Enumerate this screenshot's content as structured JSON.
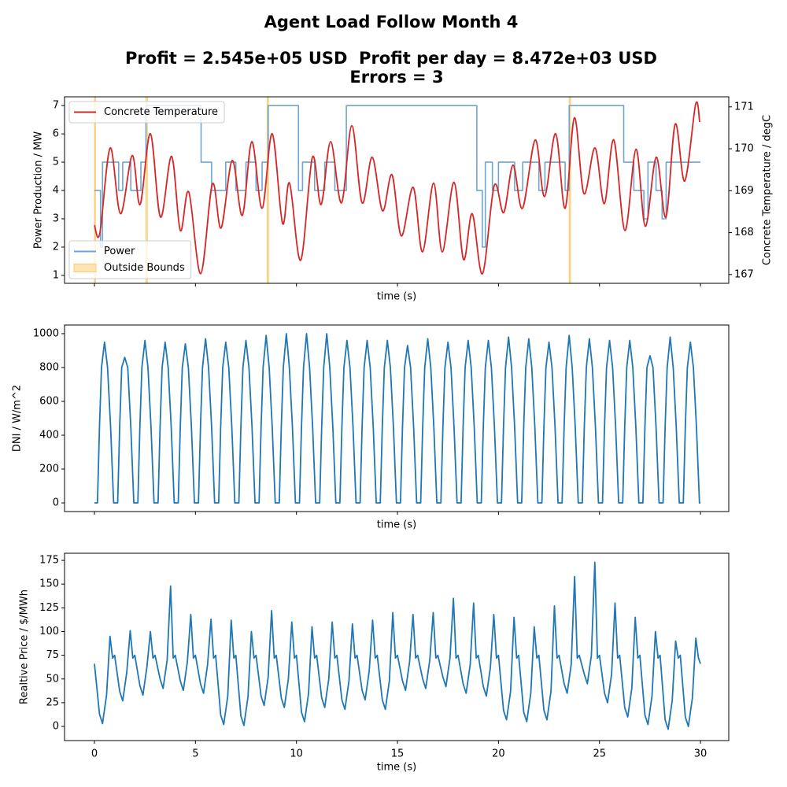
{
  "figure": {
    "title": [
      "Agent Load Follow Month 4",
      "Profit = 2.545e+05 USD  Profit per day = 8.472e+03 USD",
      "Errors = 3"
    ]
  },
  "chart_data": [
    {
      "type": "line",
      "x_label": "time (s)",
      "y_label": "Power Production / MW",
      "y2_label": "Concrete Temperature / degC",
      "xlim": [
        -1.48,
        31.4
      ],
      "xticks": [
        0,
        5,
        10,
        15,
        20,
        25,
        30
      ],
      "xticklabels": false,
      "ylim": [
        0.72,
        7.31
      ],
      "yticks": [
        1,
        2,
        3,
        4,
        5,
        6,
        7
      ],
      "y2lim": [
        166.79,
        171.24
      ],
      "y2ticks": [
        167,
        168,
        169,
        170,
        171
      ],
      "legend": "lower left",
      "legend2": "upper left",
      "bounds": {
        "name": "Outside Bounds",
        "color": "#ffe5b4",
        "edge": "#ffc870",
        "x": [
          [
            0,
            0.05
          ],
          [
            2.55,
            2.62
          ],
          [
            8.55,
            8.62
          ],
          [
            23.5,
            23.57
          ]
        ]
      },
      "series": [
        {
          "name": "Power",
          "color": "#6ea6d0",
          "step": true,
          "x": [
            0,
            0.3,
            0.4,
            1.2,
            1.4,
            1.8,
            2.3,
            2.55,
            5.28,
            5.8,
            6.5,
            7.0,
            7.5,
            8.0,
            8.3,
            8.6,
            10.1,
            10.3,
            10.9,
            11.4,
            11.9,
            12.47,
            18.93,
            19.2,
            19.35,
            19.7,
            20.0,
            20.8,
            21.2,
            22.0,
            22.3,
            23.3,
            23.5,
            26.2,
            26.7,
            27.2,
            27.4,
            27.8,
            28.1,
            28.3,
            30
          ],
          "values": [
            4,
            2,
            5,
            4,
            5,
            4,
            5,
            7,
            5,
            4,
            5,
            4,
            5,
            4,
            5,
            7,
            4,
            5,
            4,
            5,
            4,
            7,
            4,
            2,
            5,
            4,
            5,
            4,
            5,
            4,
            5,
            4,
            7,
            5,
            4,
            3,
            5,
            4,
            3,
            5,
            5
          ]
        },
        {
          "name": "Concrete Temperature",
          "color": "#d62728",
          "axis": "y2",
          "smooth": true,
          "x": [
            0,
            0.27,
            0.78,
            1.29,
            1.87,
            2.26,
            2.77,
            3.27,
            3.82,
            4.25,
            4.67,
            5.26,
            5.84,
            6.27,
            6.82,
            7.32,
            7.79,
            8.3,
            8.8,
            9.31,
            9.66,
            10.21,
            10.79,
            11.22,
            11.69,
            12.23,
            12.74,
            13.25,
            13.75,
            14.26,
            14.73,
            15.19,
            15.78,
            16.24,
            16.79,
            17.22,
            17.8,
            18.27,
            18.7,
            19.21,
            19.79,
            20.26,
            20.72,
            21.19,
            21.82,
            22.28,
            22.83,
            23.3,
            23.76,
            24.23,
            24.78,
            25.24,
            25.71,
            26.26,
            26.81,
            27.27,
            27.81,
            28.29,
            28.75,
            29.22,
            29.76,
            29.96
          ],
          "values": [
            168.18,
            167.99,
            170.02,
            168.45,
            169.84,
            168.67,
            170.36,
            168.37,
            169.82,
            168.05,
            168.97,
            167.02,
            169.16,
            168.11,
            169.72,
            168.41,
            170.17,
            168.58,
            170.36,
            168.22,
            169.18,
            167.34,
            169.8,
            168.67,
            170.17,
            168.71,
            170.55,
            168.71,
            169.8,
            168.52,
            169.38,
            167.92,
            169.08,
            167.54,
            169.18,
            167.54,
            169.2,
            167.36,
            168.45,
            167.02,
            169.12,
            168.48,
            169.61,
            168.58,
            170.21,
            168.86,
            170.36,
            168.58,
            170.74,
            168.93,
            170.02,
            168.69,
            170.21,
            168.05,
            169.99,
            168.15,
            169.8,
            168.37,
            170.59,
            169.23,
            171.06,
            170.64
          ]
        }
      ]
    },
    {
      "type": "line",
      "x_label": "time (s)",
      "y_label": "DNI / W/m^2",
      "color": "#1f77b4",
      "xlim": [
        -1.48,
        31.4
      ],
      "xticks": [
        0,
        5,
        10,
        15,
        20,
        25,
        30
      ],
      "xticklabels": false,
      "ylim": [
        -51,
        1051
      ],
      "yticks": [
        0,
        200,
        400,
        600,
        800,
        1000
      ],
      "x": [
        0,
        0.15,
        0.25,
        0.35,
        0.5,
        0.65,
        0.8,
        0.95,
        1.15,
        1.25,
        1.35,
        1.5,
        1.65,
        1.8,
        1.95,
        2.15,
        2.25,
        2.35,
        2.5,
        2.65,
        2.8,
        2.95,
        3.15,
        3.25,
        3.35,
        3.5,
        3.65,
        3.8,
        3.95,
        4.15,
        4.25,
        4.35,
        4.5,
        4.65,
        4.8,
        4.95,
        5.15,
        5.25,
        5.35,
        5.5,
        5.65,
        5.8,
        5.95,
        6.15,
        6.25,
        6.35,
        6.5,
        6.65,
        6.8,
        6.95,
        7.15,
        7.25,
        7.35,
        7.5,
        7.65,
        7.8,
        7.95,
        8.15,
        8.25,
        8.35,
        8.5,
        8.65,
        8.8,
        8.95,
        9.15,
        9.25,
        9.35,
        9.5,
        9.65,
        9.8,
        9.95,
        10.15,
        10.25,
        10.35,
        10.5,
        10.65,
        10.8,
        10.95,
        11.15,
        11.25,
        11.35,
        11.5,
        11.65,
        11.8,
        11.95,
        12.15,
        12.25,
        12.35,
        12.5,
        12.65,
        12.8,
        12.95,
        13.15,
        13.25,
        13.35,
        13.5,
        13.65,
        13.8,
        13.95,
        14.15,
        14.25,
        14.35,
        14.5,
        14.65,
        14.8,
        14.95,
        15.15,
        15.25,
        15.35,
        15.5,
        15.65,
        15.8,
        15.95,
        16.15,
        16.25,
        16.35,
        16.5,
        16.65,
        16.8,
        16.95,
        17.15,
        17.25,
        17.35,
        17.5,
        17.65,
        17.8,
        17.95,
        18.15,
        18.25,
        18.35,
        18.5,
        18.65,
        18.8,
        18.95,
        19.15,
        19.25,
        19.35,
        19.5,
        19.65,
        19.8,
        19.95,
        20.15,
        20.25,
        20.35,
        20.5,
        20.65,
        20.8,
        20.95,
        21.15,
        21.25,
        21.35,
        21.5,
        21.65,
        21.8,
        21.95,
        22.15,
        22.25,
        22.35,
        22.5,
        22.65,
        22.8,
        22.95,
        23.15,
        23.25,
        23.35,
        23.5,
        23.65,
        23.8,
        23.95,
        24.15,
        24.25,
        24.35,
        24.5,
        24.65,
        24.8,
        24.95,
        25.15,
        25.25,
        25.35,
        25.5,
        25.65,
        25.8,
        25.95,
        26.15,
        26.25,
        26.35,
        26.5,
        26.65,
        26.8,
        26.95,
        27.15,
        27.25,
        27.35,
        27.5,
        27.65,
        27.8,
        27.95,
        28.15,
        28.25,
        28.35,
        28.5,
        28.65,
        28.8,
        28.95,
        29.15,
        29.25,
        29.35,
        29.5,
        29.65,
        29.8,
        29.95,
        30
      ],
      "values": [
        0,
        0,
        450,
        800,
        950,
        800,
        450,
        0,
        0,
        450,
        800,
        860,
        800,
        450,
        0,
        0,
        450,
        800,
        960,
        800,
        450,
        0,
        0,
        450,
        800,
        950,
        800,
        450,
        0,
        0,
        450,
        800,
        940,
        800,
        450,
        0,
        0,
        450,
        800,
        970,
        800,
        450,
        0,
        0,
        450,
        800,
        950,
        800,
        450,
        0,
        0,
        450,
        800,
        960,
        800,
        450,
        0,
        0,
        450,
        800,
        990,
        800,
        450,
        0,
        0,
        450,
        800,
        1000,
        800,
        450,
        0,
        0,
        450,
        800,
        1000,
        800,
        450,
        0,
        0,
        450,
        800,
        1000,
        800,
        450,
        0,
        0,
        450,
        800,
        960,
        800,
        450,
        0,
        0,
        450,
        800,
        960,
        800,
        450,
        0,
        0,
        450,
        800,
        960,
        800,
        450,
        0,
        0,
        450,
        800,
        930,
        800,
        450,
        0,
        0,
        450,
        800,
        970,
        800,
        450,
        0,
        0,
        450,
        800,
        950,
        800,
        450,
        0,
        0,
        450,
        800,
        960,
        800,
        450,
        0,
        0,
        450,
        800,
        960,
        800,
        450,
        0,
        0,
        450,
        800,
        980,
        800,
        450,
        0,
        0,
        450,
        800,
        970,
        800,
        450,
        0,
        0,
        450,
        800,
        950,
        800,
        450,
        0,
        0,
        450,
        800,
        990,
        800,
        450,
        0,
        0,
        450,
        800,
        970,
        800,
        450,
        0,
        0,
        450,
        800,
        960,
        800,
        450,
        0,
        0,
        450,
        800,
        960,
        800,
        450,
        0,
        0,
        450,
        800,
        870,
        800,
        450,
        0,
        0,
        450,
        800,
        980,
        800,
        450,
        0,
        0,
        450,
        800,
        950,
        800,
        450,
        0,
        0
      ]
    },
    {
      "type": "line",
      "x_label": "time (s)",
      "y_label": "Realtive Price / $/MWh",
      "color": "#1f77b4",
      "xlim": [
        -1.48,
        31.4
      ],
      "xticks": [
        0,
        5,
        10,
        15,
        20,
        25,
        30
      ],
      "xticklabels": true,
      "ylim": [
        -14.9,
        182.5
      ],
      "yticks": [
        0,
        25,
        50,
        75,
        100,
        125,
        150,
        175
      ],
      "x": [
        0,
        0.25,
        0.4,
        0.6,
        0.77,
        0.9,
        1,
        1.25,
        1.4,
        1.6,
        1.77,
        1.9,
        2,
        2.25,
        2.4,
        2.6,
        2.77,
        2.9,
        3,
        3.25,
        3.4,
        3.6,
        3.77,
        3.9,
        4,
        4.25,
        4.4,
        4.6,
        4.77,
        4.9,
        5,
        5.25,
        5.4,
        5.6,
        5.77,
        5.9,
        6,
        6.25,
        6.4,
        6.6,
        6.77,
        6.9,
        7,
        7.25,
        7.4,
        7.6,
        7.77,
        7.9,
        8,
        8.25,
        8.4,
        8.6,
        8.77,
        8.9,
        9,
        9.25,
        9.4,
        9.6,
        9.77,
        9.9,
        10,
        10.25,
        10.4,
        10.6,
        10.77,
        10.9,
        11,
        11.25,
        11.4,
        11.6,
        11.77,
        11.9,
        12,
        12.25,
        12.4,
        12.6,
        12.77,
        12.9,
        13,
        13.25,
        13.4,
        13.6,
        13.77,
        13.9,
        14,
        14.25,
        14.4,
        14.6,
        14.77,
        14.9,
        15,
        15.25,
        15.4,
        15.6,
        15.77,
        15.9,
        16,
        16.25,
        16.4,
        16.6,
        16.77,
        16.9,
        17,
        17.25,
        17.4,
        17.6,
        17.77,
        17.9,
        18,
        18.25,
        18.4,
        18.6,
        18.77,
        18.9,
        19,
        19.25,
        19.4,
        19.6,
        19.77,
        19.9,
        20,
        20.25,
        20.4,
        20.6,
        20.77,
        20.9,
        21,
        21.25,
        21.4,
        21.6,
        21.77,
        21.9,
        22,
        22.25,
        22.4,
        22.6,
        22.77,
        22.9,
        23,
        23.25,
        23.4,
        23.6,
        23.77,
        23.9,
        24,
        24.25,
        24.4,
        24.6,
        24.77,
        24.9,
        25,
        25.25,
        25.4,
        25.6,
        25.77,
        25.9,
        26,
        26.25,
        26.4,
        26.6,
        26.77,
        26.9,
        27,
        27.25,
        27.4,
        27.6,
        27.77,
        27.9,
        28,
        28.25,
        28.4,
        28.6,
        28.77,
        28.9,
        29,
        29.25,
        29.4,
        29.6,
        29.77,
        29.9,
        30
      ],
      "values": [
        66,
        13,
        3,
        33,
        95,
        72,
        75,
        37,
        27,
        57,
        101,
        72,
        75,
        43,
        33,
        63,
        100,
        72,
        75,
        50,
        40,
        70,
        148,
        72,
        75,
        48,
        38,
        68,
        118,
        72,
        75,
        45,
        35,
        65,
        113,
        72,
        75,
        12,
        2,
        32,
        112,
        72,
        75,
        11,
        1,
        31,
        100,
        72,
        75,
        32,
        22,
        52,
        122,
        72,
        75,
        30,
        20,
        50,
        110,
        72,
        75,
        15,
        5,
        35,
        105,
        72,
        75,
        30,
        20,
        50,
        110,
        72,
        75,
        28,
        18,
        48,
        108,
        72,
        75,
        38,
        28,
        58,
        112,
        72,
        75,
        28,
        18,
        48,
        120,
        72,
        75,
        48,
        38,
        68,
        118,
        72,
        75,
        50,
        40,
        70,
        120,
        72,
        75,
        52,
        42,
        72,
        135,
        72,
        75,
        45,
        35,
        65,
        130,
        72,
        75,
        42,
        32,
        62,
        118,
        72,
        75,
        17,
        7,
        37,
        115,
        72,
        75,
        15,
        5,
        35,
        105,
        72,
        75,
        17,
        7,
        37,
        127,
        72,
        75,
        45,
        35,
        65,
        158,
        72,
        75,
        55,
        45,
        75,
        173,
        72,
        75,
        35,
        25,
        55,
        130,
        72,
        75,
        20,
        10,
        40,
        115,
        72,
        75,
        12,
        2,
        32,
        100,
        72,
        75,
        7,
        -3,
        27,
        90,
        72,
        75,
        10,
        0,
        30,
        93,
        72,
        66
      ]
    }
  ]
}
